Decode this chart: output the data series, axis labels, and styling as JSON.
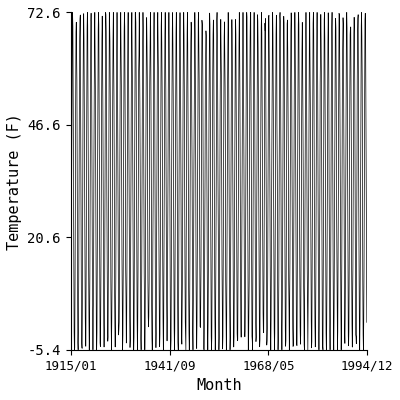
{
  "title": "",
  "xlabel": "Month",
  "ylabel": "Temperature (F)",
  "start_year": 1915,
  "start_month": 1,
  "end_year": 1994,
  "end_month": 12,
  "yticks": [
    -5.4,
    20.6,
    46.6,
    72.6
  ],
  "ylim": [
    -5.4,
    72.6
  ],
  "xtick_labels": [
    "1915/01",
    "1941/09",
    "1968/05",
    "1994/12"
  ],
  "mean_temp": 33.6,
  "amplitude": 39.0,
  "noise_std": 2.5,
  "line_color": "black",
  "line_width": 0.5,
  "bg_color": "white",
  "figsize": [
    4.0,
    4.0
  ],
  "dpi": 100,
  "font_family": "monospace",
  "label_fontsize": 11,
  "tick_fontsize": 10,
  "xtick_fontsize": 9
}
